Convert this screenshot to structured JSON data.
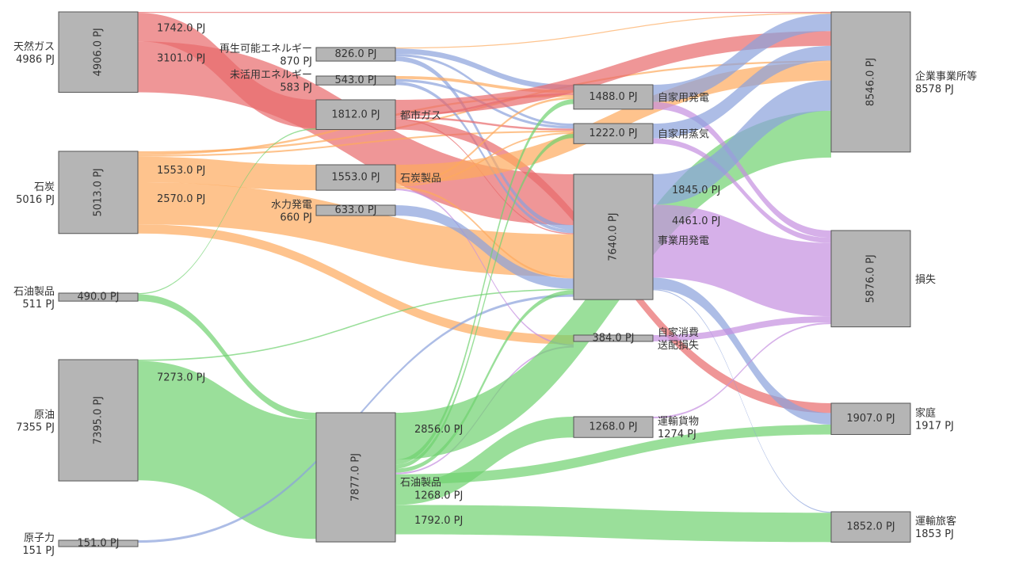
{
  "diagram": {
    "type": "sankey",
    "unit": "PJ",
    "colors": {
      "gas": "#e8696b",
      "coal": "#fdaa5c",
      "oil": "#6fd26f",
      "blue": "#8aa1dc",
      "purple": "#c58ee0",
      "node": "#b5b5b5"
    },
    "nodes": [
      {
        "id": "gas",
        "name": "天然ガス",
        "total_label": "4986 PJ",
        "value_label": "4906.0 PJ",
        "value": 4906
      },
      {
        "id": "coal",
        "name": "石炭",
        "total_label": "5016 PJ",
        "value_label": "5013.0 PJ",
        "value": 5013
      },
      {
        "id": "oilp0",
        "name": "石油製品",
        "total_label": "511 PJ",
        "value_label": "490.0 PJ",
        "value": 490
      },
      {
        "id": "crude",
        "name": "原油",
        "total_label": "7355 PJ",
        "value_label": "7395.0 PJ",
        "value": 7395
      },
      {
        "id": "nuclear",
        "name": "原子力",
        "total_label": "151 PJ",
        "value_label": "151.0 PJ",
        "value": 151
      },
      {
        "id": "renew",
        "name": "再生可能エネルギー",
        "total_label": "870 PJ",
        "value_label": "826.0 PJ",
        "value": 826
      },
      {
        "id": "unused",
        "name": "未活用エネルギー",
        "total_label": "583 PJ",
        "value_label": "543.0 PJ",
        "value": 543
      },
      {
        "id": "citygas",
        "name": "都市ガス",
        "total_label": "",
        "value_label": "1812.0 PJ",
        "value": 1812
      },
      {
        "id": "coalp",
        "name": "石炭製品",
        "total_label": "",
        "value_label": "1553.0 PJ",
        "value": 1553
      },
      {
        "id": "hydro",
        "name": "水力発電",
        "total_label": "660 PJ",
        "value_label": "633.0 PJ",
        "value": 633
      },
      {
        "id": "refinery",
        "name": "石油製品",
        "total_label": "",
        "value_label": "7877.0 PJ",
        "value": 7877
      },
      {
        "id": "selfgen",
        "name": "自家用発電",
        "total_label": "",
        "value_label": "1488.0 PJ",
        "value": 1488
      },
      {
        "id": "selfsteam",
        "name": "自家用蒸気",
        "total_label": "",
        "value_label": "1222.0 PJ",
        "value": 1222
      },
      {
        "id": "utility",
        "name": "事業用発電",
        "total_label": "",
        "value_label": "7640.0 PJ",
        "value": 7640
      },
      {
        "id": "selfuse",
        "name": "自家消費\n送配損失",
        "total_label": "",
        "value_label": "384.0 PJ",
        "value": 384
      },
      {
        "id": "freight",
        "name": "運輸貨物",
        "total_label": "1274 PJ",
        "value_label": "1268.0 PJ",
        "value": 1268
      },
      {
        "id": "business",
        "name": "企業事業所等",
        "total_label": "8578 PJ",
        "value_label": "8546.0 PJ",
        "value": 8546
      },
      {
        "id": "loss",
        "name": "損失",
        "total_label": "",
        "value_label": "5876.0 PJ",
        "value": 5876
      },
      {
        "id": "home",
        "name": "家庭",
        "total_label": "1917 PJ",
        "value_label": "1907.0 PJ",
        "value": 1907
      },
      {
        "id": "passenger",
        "name": "運輸旅客",
        "total_label": "1853 PJ",
        "value_label": "1852.0 PJ",
        "value": 1852
      }
    ],
    "links": [
      {
        "source": "gas",
        "target": "business",
        "value": 60,
        "color": "gas"
      },
      {
        "source": "gas",
        "target": "citygas",
        "value": 1742,
        "color": "gas",
        "label": "1742.0 PJ"
      },
      {
        "source": "gas",
        "target": "utility",
        "value": 3101,
        "color": "gas",
        "label": "3101.0 PJ"
      },
      {
        "source": "coal",
        "target": "business",
        "value": 110,
        "color": "coal"
      },
      {
        "source": "coal",
        "target": "selfgen",
        "value": 120,
        "color": "coal"
      },
      {
        "source": "coal",
        "target": "selfsteam",
        "value": 100,
        "color": "coal"
      },
      {
        "source": "coal",
        "target": "coalp",
        "value": 1553,
        "color": "coal",
        "label": "1553.0 PJ"
      },
      {
        "source": "coal",
        "target": "utility",
        "value": 2570,
        "color": "coal",
        "label": "2570.0 PJ"
      },
      {
        "source": "coal",
        "target": "selfuse",
        "value": 560,
        "color": "coal"
      },
      {
        "source": "oilp0",
        "target": "citygas",
        "value": 70,
        "color": "oil"
      },
      {
        "source": "oilp0",
        "target": "refinery",
        "value": 420,
        "color": "oil"
      },
      {
        "source": "crude",
        "target": "utility",
        "value": 80,
        "color": "oil"
      },
      {
        "source": "crude",
        "target": "refinery",
        "value": 7273,
        "color": "oil",
        "label": "7273.0 PJ"
      },
      {
        "source": "nuclear",
        "target": "utility",
        "value": 151,
        "color": "blue"
      },
      {
        "source": "renew",
        "target": "business",
        "value": 60,
        "color": "coal"
      },
      {
        "source": "renew",
        "target": "selfgen",
        "value": 330,
        "color": "blue"
      },
      {
        "source": "renew",
        "target": "selfsteam",
        "value": 150,
        "color": "blue"
      },
      {
        "source": "renew",
        "target": "utility",
        "value": 286,
        "color": "blue"
      },
      {
        "source": "unused",
        "target": "selfgen",
        "value": 180,
        "color": "coal"
      },
      {
        "source": "unused",
        "target": "selfsteam",
        "value": 160,
        "color": "blue"
      },
      {
        "source": "unused",
        "target": "utility",
        "value": 203,
        "color": "blue"
      },
      {
        "source": "citygas",
        "target": "business",
        "value": 900,
        "color": "gas"
      },
      {
        "source": "citygas",
        "target": "selfgen",
        "value": 120,
        "color": "gas"
      },
      {
        "source": "citygas",
        "target": "selfsteam",
        "value": 120,
        "color": "gas"
      },
      {
        "source": "citygas",
        "target": "home",
        "value": 600,
        "color": "gas"
      },
      {
        "source": "citygas",
        "target": "utility",
        "value": 72,
        "color": "gas"
      },
      {
        "source": "coalp",
        "target": "business",
        "value": 1100,
        "color": "coal"
      },
      {
        "source": "coalp",
        "target": "selfgen",
        "value": 130,
        "color": "coal"
      },
      {
        "source": "coalp",
        "target": "selfsteam",
        "value": 100,
        "color": "coal"
      },
      {
        "source": "coalp",
        "target": "utility",
        "value": 123,
        "color": "coal"
      },
      {
        "source": "coalp",
        "target": "selfuse",
        "value": 100,
        "color": "purple"
      },
      {
        "source": "hydro",
        "target": "utility",
        "value": 633,
        "color": "blue"
      },
      {
        "source": "refinery",
        "target": "selfgen",
        "value": 300,
        "color": "oil"
      },
      {
        "source": "refinery",
        "target": "selfsteam",
        "value": 250,
        "color": "oil"
      },
      {
        "source": "refinery",
        "target": "utility",
        "value": 250,
        "color": "oil"
      },
      {
        "source": "refinery",
        "target": "selfuse",
        "value": 100,
        "color": "purple"
      },
      {
        "source": "refinery",
        "target": "business",
        "value": 2856,
        "color": "oil",
        "label": "2856.0 PJ"
      },
      {
        "source": "refinery",
        "target": "freight",
        "value": 1268,
        "color": "oil",
        "label": "1268.0 PJ"
      },
      {
        "source": "refinery",
        "target": "home",
        "value": 600,
        "color": "oil"
      },
      {
        "source": "refinery",
        "target": "passenger",
        "value": 1792,
        "color": "oil",
        "label": "1792.0 PJ"
      },
      {
        "source": "selfgen",
        "target": "business",
        "value": 1050,
        "color": "blue"
      },
      {
        "source": "selfgen",
        "target": "loss",
        "value": 438,
        "color": "purple"
      },
      {
        "source": "selfsteam",
        "target": "business",
        "value": 900,
        "color": "blue"
      },
      {
        "source": "selfsteam",
        "target": "loss",
        "value": 322,
        "color": "purple"
      },
      {
        "source": "utility",
        "target": "business",
        "value": 1845,
        "color": "blue",
        "label": "1845.0 PJ"
      },
      {
        "source": "utility",
        "target": "loss",
        "value": 4461,
        "color": "purple",
        "label": "4461.0 PJ"
      },
      {
        "source": "utility",
        "target": "home",
        "value": 707,
        "color": "blue"
      },
      {
        "source": "utility",
        "target": "passenger",
        "value": 60,
        "color": "blue"
      },
      {
        "source": "selfuse",
        "target": "loss",
        "value": 384,
        "color": "purple"
      },
      {
        "source": "freight",
        "target": "loss",
        "value": 100,
        "color": "purple"
      }
    ]
  }
}
